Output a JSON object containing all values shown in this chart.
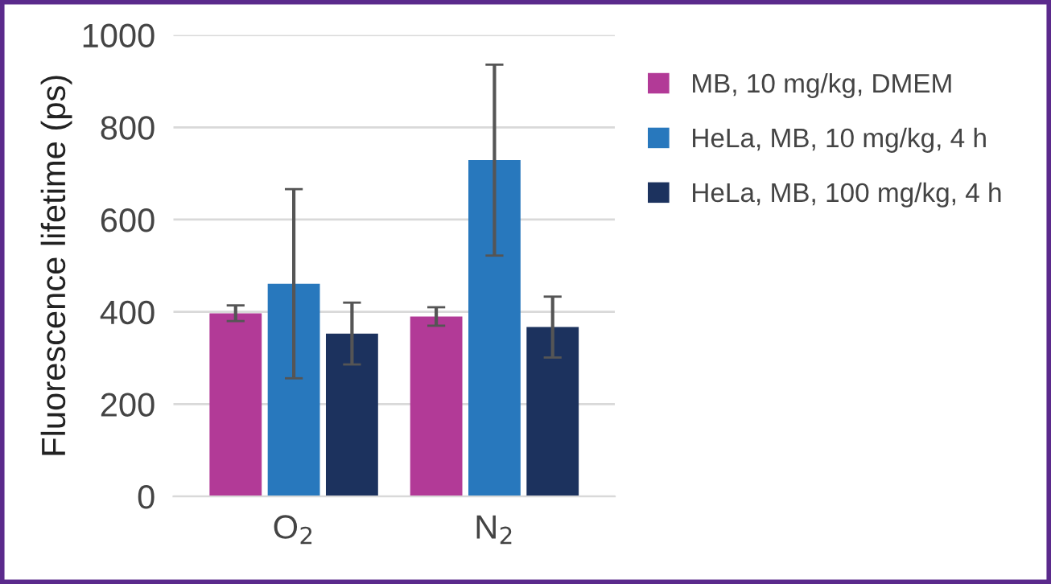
{
  "chart_data": {
    "type": "bar",
    "ylabel": "Fluorescence lifetime (ps)",
    "categories": [
      "O$_{2}$",
      "N$_{2}$"
    ],
    "series": [
      {
        "name": "MB, 10 mg/kg, DMEM",
        "color": "#b23a97",
        "values": [
          397,
          390
        ],
        "errors": [
          17,
          20
        ]
      },
      {
        "name": "HeLa, MB, 10 mg/kg, 4 h",
        "color": "#2878bd",
        "values": [
          461,
          729
        ],
        "errors": [
          205,
          207
        ]
      },
      {
        "name": "HeLa, MB, 100 mg/kg, 4 h",
        "color": "#1c325e",
        "values": [
          353,
          367
        ],
        "errors": [
          67,
          66
        ]
      }
    ],
    "ylim": [
      0,
      1000
    ],
    "yticks": [
      0,
      200,
      400,
      600,
      800,
      1000
    ],
    "grid": "y",
    "legend": "top right"
  }
}
